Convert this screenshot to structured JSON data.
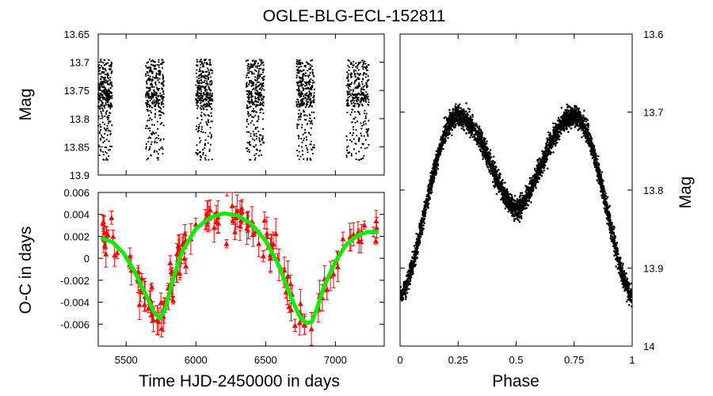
{
  "title": "OGLE-BLG-ECL-152811",
  "colors": {
    "points": "#000000",
    "oc_points": "#ff0000",
    "fit": "#00ee00"
  },
  "chart_data": [
    {
      "id": "lightcurve_time",
      "type": "scatter",
      "xlim": [
        5300,
        7350
      ],
      "ylim": [
        13.65,
        13.9
      ],
      "y_inverted": true,
      "ylabel": "Mag",
      "yticks": [
        "13.65",
        "13.7",
        "13.75",
        "13.8",
        "13.85",
        "13.9"
      ],
      "yticks_values": [
        13.65,
        13.7,
        13.75,
        13.8,
        13.85,
        13.9
      ],
      "seasons": [
        {
          "start": 5300,
          "end": 5400
        },
        {
          "start": 5640,
          "end": 5770
        },
        {
          "start": 6000,
          "end": 6120
        },
        {
          "start": 6360,
          "end": 6490
        },
        {
          "start": 6720,
          "end": 6850
        },
        {
          "start": 7080,
          "end": 7240
        }
      ],
      "mag_range": [
        13.695,
        13.865
      ]
    },
    {
      "id": "oc_diagram",
      "type": "scatter",
      "xlabel": "Time HJD-2450000 in days",
      "ylabel": "O-C in days",
      "xlim": [
        5300,
        7350
      ],
      "ylim": [
        -0.008,
        0.006
      ],
      "xticks": [
        "5500",
        "6000",
        "6500",
        "7000"
      ],
      "xticks_values": [
        5500,
        6000,
        6500,
        7000
      ],
      "yticks": [
        "0.006",
        "0.004",
        "0.002",
        "0",
        "-0.002",
        "-0.004",
        "-0.006"
      ],
      "yticks_values": [
        0.006,
        0.004,
        0.002,
        0,
        -0.002,
        -0.004,
        -0.006
      ],
      "fit": {
        "x": [
          5330,
          5400,
          5480,
          5560,
          5640,
          5700,
          5740,
          5780,
          5830,
          5900,
          6000,
          6100,
          6200,
          6300,
          6400,
          6500,
          6600,
          6680,
          6740,
          6790,
          6830,
          6870,
          6920,
          7000,
          7080,
          7160,
          7230,
          7300
        ],
        "y": [
          0.0018,
          0.0015,
          0.0005,
          -0.0012,
          -0.0033,
          -0.0049,
          -0.0055,
          -0.0046,
          -0.0022,
          0.0006,
          0.0027,
          0.0037,
          0.0041,
          0.0039,
          0.0031,
          0.0016,
          -0.0008,
          -0.0035,
          -0.0052,
          -0.0059,
          -0.0058,
          -0.0045,
          -0.0025,
          -0.0003,
          0.0013,
          0.0021,
          0.0024,
          0.0024
        ]
      },
      "n_points": 150
    },
    {
      "id": "phased_lightcurve",
      "type": "scatter",
      "xlabel": "Phase",
      "ylabel": "Mag",
      "xlim": [
        0,
        1
      ],
      "ylim": [
        13.6,
        14.0
      ],
      "y_inverted": true,
      "xticks": [
        "0",
        "0.25",
        "0.5",
        "0.75",
        "1"
      ],
      "xticks_values": [
        0,
        0.25,
        0.5,
        0.75,
        1
      ],
      "yticks": [
        "13.6",
        "13.7",
        "13.8",
        "13.9",
        "14"
      ],
      "yticks_values": [
        13.6,
        13.7,
        13.8,
        13.9,
        14.0
      ],
      "max_mag": 13.705,
      "secondary_min_mag": 13.825,
      "primary_min_mag": 13.935,
      "n_points": 4200
    }
  ]
}
